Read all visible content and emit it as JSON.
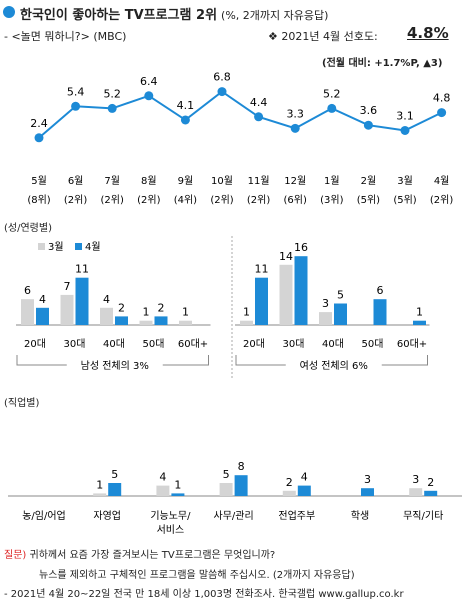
{
  "header": {
    "title": "한국인이 좋아하는 TV프로그램 2위",
    "unit": "(%, 2개까지 자유응답)",
    "subtitle": "- <놀면 뭐하니?> (MBC)",
    "pref_label": "❖ 2021년 4월 선호도:",
    "pref_value": "4.8%",
    "change": "(전월 대비: +1.7%P, ▲3)"
  },
  "sections": {
    "segment_label": "(성/연령별)",
    "job_label": "(직업별)"
  },
  "footer": {
    "q_label": "질문)",
    "q_line1": " 귀하께서 요즘 가장 즐겨보시는 TV프로그램은 무엇입니까?",
    "q_line2": "뉴스를 제외하고 구체적인 프로그램을 말씀해 주십시오. (2개까지 자유응답)",
    "source": "- 2021년 4월 20~22일 전국 만 18세 이상 1,003명 전화조사. 한국갤럽 www.gallup.co.kr"
  },
  "colors": {
    "line": "#1d8ad6",
    "bar_prev": "#d4d4d4",
    "bar_cur": "#1d8ad6",
    "axis": "#888888"
  },
  "chart_data": [
    {
      "type": "line",
      "categories": [
        "5월",
        "6월",
        "7월",
        "8월",
        "9월",
        "10월",
        "11월",
        "12월",
        "1월",
        "2월",
        "3월",
        "4월"
      ],
      "ranks": [
        "(8위)",
        "(2위)",
        "(2위)",
        "(2위)",
        "(4위)",
        "(2위)",
        "(2위)",
        "(6위)",
        "(3위)",
        "(5위)",
        "(5위)",
        "(2위)"
      ],
      "values": [
        2.4,
        5.4,
        5.2,
        6.4,
        4.1,
        6.8,
        4.4,
        3.3,
        5.2,
        3.6,
        3.1,
        4.8
      ],
      "ylim": [
        0,
        9
      ]
    },
    {
      "type": "bar",
      "legend": [
        "3월",
        "4월"
      ],
      "legend_position": "top-left",
      "groups": [
        {
          "label": "남성 전체의 3%",
          "categories": [
            "20대",
            "30대",
            "40대",
            "50대",
            "60대+"
          ],
          "series": [
            {
              "name": "3월",
              "values": [
                6,
                7,
                4,
                1,
                1
              ]
            },
            {
              "name": "4월",
              "values": [
                4,
                11,
                2,
                2,
                null
              ]
            }
          ]
        },
        {
          "label": "여성 전체의 6%",
          "categories": [
            "20대",
            "30대",
            "40대",
            "50대",
            "60대+"
          ],
          "series": [
            {
              "name": "3월",
              "values": [
                1,
                14,
                3,
                null,
                null
              ]
            },
            {
              "name": "4월",
              "values": [
                11,
                16,
                5,
                6,
                1
              ]
            }
          ]
        }
      ],
      "ylim": [
        0,
        16
      ]
    },
    {
      "type": "bar",
      "categories": [
        "농/임/어업",
        "자영업",
        "기능노무/서비스",
        "사무/관리",
        "전업주부",
        "학생",
        "무직/기타"
      ],
      "category_lines": [
        [
          "농/임/어업"
        ],
        [
          "자영업"
        ],
        [
          "기능노무/",
          "서비스"
        ],
        [
          "사무/관리"
        ],
        [
          "전업주부"
        ],
        [
          "학생"
        ],
        [
          "무직/기타"
        ]
      ],
      "series": [
        {
          "name": "3월",
          "values": [
            null,
            1,
            4,
            5,
            2,
            null,
            3
          ]
        },
        {
          "name": "4월",
          "values": [
            null,
            5,
            1,
            8,
            4,
            3,
            2
          ]
        }
      ],
      "ylim": [
        0,
        16
      ]
    }
  ]
}
